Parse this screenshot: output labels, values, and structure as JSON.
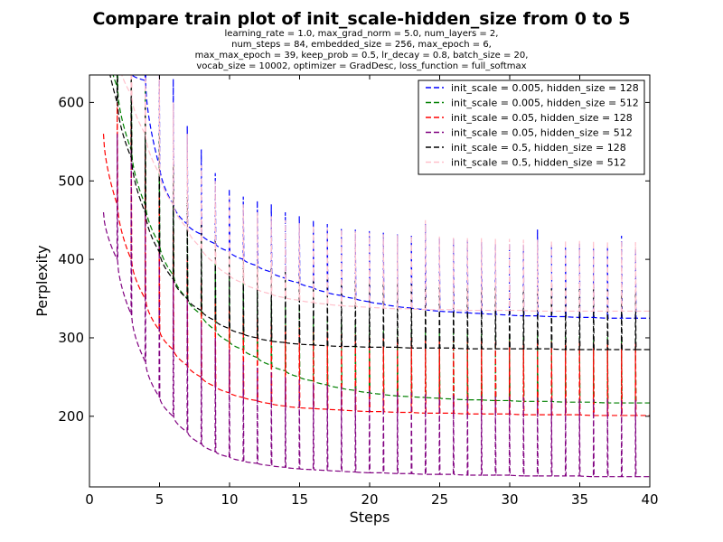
{
  "chart_data": {
    "type": "line",
    "title": "Compare train plot of init_scale-hidden_size from 0 to 5",
    "subtitle_lines": [
      "learning_rate = 1.0, max_grad_norm = 5.0, num_layers = 2,",
      "num_steps = 84, embedded_size = 256, max_epoch = 6,",
      "max_max_epoch = 39, keep_prob = 0.5, lr_decay = 0.8, batch_size = 20,",
      "vocab_size = 10002, optimizer = GradDesc, loss_function = full_softmax"
    ],
    "xlabel": "Steps",
    "ylabel": "Perplexity",
    "xlim": [
      0,
      40
    ],
    "ylim": [
      110,
      635
    ],
    "xticks": [
      "0",
      "5",
      "10",
      "15",
      "20",
      "25",
      "30",
      "35",
      "40"
    ],
    "xtick_values": [
      0,
      5,
      10,
      15,
      20,
      25,
      30,
      35,
      40
    ],
    "yticks": [
      "200",
      "300",
      "400",
      "500",
      "600"
    ],
    "ytick_values": [
      200,
      300,
      400,
      500,
      600
    ],
    "grid": false,
    "legend_position": "top-right",
    "line_style": "dashed",
    "epochs": 39,
    "series": [
      {
        "name": "init_scale = 0.005, hidden_size = 128",
        "color": "#0000ff",
        "epoch_start": [
          700,
          640,
          636,
          628,
          520,
          470,
          445,
          432,
          420,
          410,
          400,
          392,
          384,
          376,
          370,
          364,
          358,
          354,
          350,
          346,
          343,
          340,
          338,
          336,
          334,
          333,
          332,
          331,
          330,
          329,
          328,
          328,
          327,
          327,
          326,
          326,
          325,
          325,
          325
        ],
        "epoch_end": [
          640,
          636,
          628,
          520,
          470,
          445,
          432,
          420,
          410,
          400,
          392,
          384,
          376,
          370,
          364,
          358,
          354,
          350,
          346,
          343,
          340,
          338,
          336,
          334,
          333,
          332,
          331,
          330,
          329,
          328,
          328,
          327,
          327,
          326,
          326,
          325,
          325,
          325,
          325
        ],
        "epoch_peak": [
          700,
          700,
          690,
          650,
          630,
          570,
          540,
          510,
          490,
          480,
          475,
          470,
          460,
          455,
          450,
          445,
          440,
          438,
          436,
          434,
          432,
          430,
          445,
          428,
          426,
          424,
          422,
          420,
          420,
          418,
          438,
          418,
          415,
          420,
          414,
          416,
          430,
          414,
          340
        ]
      },
      {
        "name": "init_scale = 0.005, hidden_size = 512",
        "color": "#008000",
        "epoch_start": [
          700,
          620,
          540,
          470,
          420,
          380,
          350,
          330,
          310,
          295,
          285,
          275,
          265,
          258,
          250,
          245,
          240,
          236,
          233,
          230,
          228,
          226,
          225,
          224,
          223,
          222,
          221,
          221,
          220,
          220,
          219,
          219,
          219,
          218,
          218,
          218,
          217,
          217,
          217
        ],
        "epoch_end": [
          620,
          540,
          470,
          420,
          380,
          350,
          330,
          310,
          295,
          285,
          275,
          265,
          258,
          250,
          245,
          240,
          236,
          233,
          230,
          228,
          226,
          225,
          224,
          223,
          222,
          221,
          221,
          220,
          220,
          219,
          219,
          219,
          218,
          218,
          218,
          217,
          217,
          217,
          217
        ],
        "epoch_peak": [
          700,
          680,
          620,
          560,
          520,
          470,
          430,
          400,
          380,
          370,
          360,
          350,
          345,
          338,
          332,
          328,
          324,
          320,
          318,
          315,
          313,
          311,
          310,
          309,
          308,
          307,
          306,
          305,
          305,
          304,
          304,
          303,
          303,
          302,
          302,
          301,
          301,
          300,
          300
        ]
      },
      {
        "name": "init_scale = 0.05, hidden_size = 128",
        "color": "#ff0000",
        "epoch_start": [
          560,
          470,
          400,
          350,
          310,
          285,
          265,
          250,
          238,
          230,
          224,
          220,
          216,
          213,
          211,
          210,
          209,
          208,
          207,
          206,
          206,
          205,
          205,
          204,
          204,
          204,
          203,
          203,
          203,
          203,
          202,
          202,
          202,
          202,
          202,
          201,
          201,
          201,
          201
        ],
        "epoch_end": [
          470,
          400,
          350,
          310,
          285,
          265,
          250,
          238,
          230,
          224,
          220,
          216,
          213,
          211,
          210,
          209,
          208,
          207,
          206,
          206,
          205,
          205,
          204,
          204,
          204,
          203,
          203,
          203,
          203,
          202,
          202,
          202,
          202,
          202,
          201,
          201,
          201,
          201,
          201
        ],
        "epoch_peak": [
          600,
          580,
          540,
          480,
          440,
          400,
          370,
          350,
          340,
          330,
          325,
          320,
          316,
          313,
          310,
          308,
          306,
          304,
          303,
          302,
          301,
          300,
          299,
          298,
          298,
          297,
          297,
          296,
          296,
          295,
          295,
          295,
          294,
          294,
          294,
          293,
          293,
          293,
          205
        ]
      },
      {
        "name": "init_scale = 0.05, hidden_size = 512",
        "color": "#800080",
        "epoch_start": [
          460,
          400,
          330,
          270,
          225,
          200,
          180,
          165,
          155,
          148,
          143,
          140,
          137,
          135,
          133,
          132,
          131,
          130,
          129,
          128,
          128,
          127,
          127,
          126,
          126,
          126,
          125,
          125,
          125,
          125,
          124,
          124,
          124,
          124,
          124,
          123,
          123,
          123,
          123
        ],
        "epoch_end": [
          400,
          330,
          270,
          225,
          200,
          180,
          165,
          155,
          148,
          143,
          140,
          137,
          135,
          133,
          132,
          131,
          130,
          129,
          128,
          128,
          127,
          127,
          126,
          126,
          126,
          125,
          125,
          125,
          125,
          124,
          124,
          124,
          124,
          124,
          123,
          123,
          123,
          123,
          123
        ],
        "epoch_peak": [
          560,
          540,
          460,
          420,
          380,
          350,
          320,
          300,
          285,
          270,
          262,
          256,
          250,
          246,
          243,
          240,
          238,
          236,
          234,
          232,
          231,
          230,
          229,
          228,
          227,
          226,
          226,
          225,
          225,
          224,
          224,
          223,
          223,
          222,
          222,
          222,
          221,
          221,
          125
        ]
      },
      {
        "name": "init_scale = 0.5, hidden_size = 128",
        "color": "#000000",
        "epoch_start": [
          700,
          600,
          530,
          460,
          410,
          375,
          350,
          335,
          322,
          312,
          305,
          300,
          296,
          294,
          292,
          291,
          290,
          289,
          289,
          288,
          288,
          288,
          287,
          287,
          287,
          287,
          286,
          286,
          286,
          286,
          286,
          286,
          286,
          285,
          285,
          285,
          285,
          285,
          285
        ],
        "epoch_end": [
          600,
          530,
          460,
          410,
          375,
          350,
          335,
          322,
          312,
          305,
          300,
          296,
          294,
          292,
          291,
          290,
          289,
          289,
          288,
          288,
          288,
          287,
          287,
          287,
          287,
          286,
          286,
          286,
          286,
          286,
          286,
          286,
          285,
          285,
          285,
          285,
          285,
          285,
          285
        ],
        "epoch_peak": [
          700,
          680,
          600,
          560,
          520,
          480,
          450,
          430,
          410,
          400,
          392,
          388,
          384,
          380,
          378,
          376,
          374,
          372,
          371,
          370,
          369,
          368,
          367,
          366,
          366,
          365,
          365,
          364,
          364,
          364,
          363,
          363,
          363,
          362,
          362,
          362,
          361,
          361,
          290
        ]
      },
      {
        "name": "init_scale = 0.5, hidden_size = 512",
        "color": "#ffc0cb",
        "epoch_start": [
          700,
          660,
          610,
          560,
          510,
          470,
          440,
          415,
          395,
          380,
          370,
          362,
          356,
          351,
          348,
          345,
          343,
          341,
          340,
          339,
          338,
          337,
          337,
          336,
          336,
          336,
          335,
          335,
          335,
          335,
          335,
          334,
          334,
          334,
          334,
          334,
          334,
          334,
          334
        ],
        "epoch_end": [
          660,
          610,
          560,
          510,
          470,
          440,
          415,
          395,
          380,
          370,
          362,
          356,
          351,
          348,
          345,
          343,
          341,
          340,
          339,
          338,
          337,
          337,
          336,
          336,
          336,
          335,
          335,
          335,
          335,
          335,
          334,
          334,
          334,
          334,
          334,
          334,
          334,
          334,
          334
        ],
        "epoch_peak": [
          700,
          700,
          680,
          640,
          600,
          560,
          520,
          500,
          480,
          470,
          460,
          455,
          450,
          446,
          443,
          440,
          438,
          436,
          434,
          432,
          431,
          430,
          450,
          429,
          428,
          427,
          427,
          426,
          426,
          425,
          425,
          424,
          424,
          424,
          423,
          423,
          423,
          422,
          335
        ]
      }
    ]
  }
}
